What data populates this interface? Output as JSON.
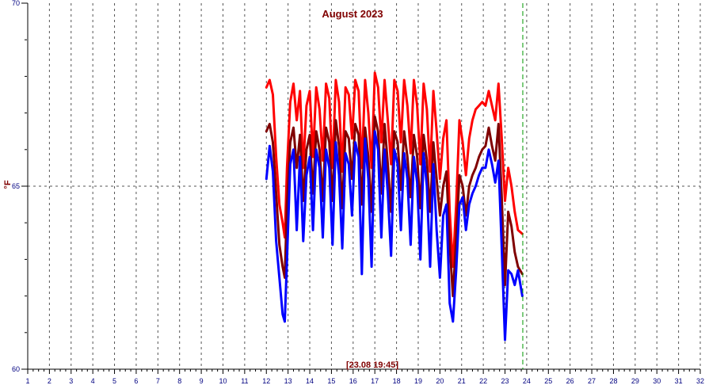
{
  "chart_data": {
    "type": "line",
    "title": "August 2023",
    "ylabel": "°F",
    "current_time_label": "[23.08 19:45]",
    "xlim": [
      1,
      32
    ],
    "ylim": [
      60,
      70
    ],
    "y_ticks": [
      60,
      65,
      70
    ],
    "x_ticks": [
      1,
      2,
      3,
      4,
      5,
      6,
      7,
      8,
      9,
      10,
      11,
      12,
      13,
      14,
      15,
      16,
      17,
      18,
      19,
      20,
      21,
      22,
      23,
      24,
      25,
      26,
      27,
      28,
      29,
      30,
      31,
      32
    ],
    "grid": true,
    "current_time_x": 23.82,
    "series": [
      {
        "color": "#ff0000",
        "x": [
          12.0,
          12.15,
          12.3,
          12.45,
          12.6,
          12.75,
          12.85,
          12.95,
          13.1,
          13.25,
          13.4,
          13.55,
          13.7,
          13.85,
          14.0,
          14.15,
          14.3,
          14.45,
          14.6,
          14.75,
          14.9,
          15.05,
          15.2,
          15.35,
          15.5,
          15.65,
          15.8,
          15.95,
          16.1,
          16.25,
          16.4,
          16.55,
          16.7,
          16.85,
          17.0,
          17.15,
          17.3,
          17.45,
          17.6,
          17.75,
          17.9,
          18.05,
          18.2,
          18.35,
          18.5,
          18.65,
          18.8,
          18.95,
          19.1,
          19.25,
          19.4,
          19.55,
          19.7,
          19.85,
          20.0,
          20.15,
          20.3,
          20.45,
          20.6,
          20.75,
          20.9,
          21.05,
          21.2,
          21.35,
          21.5,
          21.65,
          21.8,
          21.95,
          22.1,
          22.25,
          22.4,
          22.55,
          22.7,
          22.85,
          23.0,
          23.15,
          23.3,
          23.45,
          23.6,
          23.8
        ],
        "values": [
          67.7,
          67.9,
          67.5,
          65.8,
          64.5,
          64.0,
          63.6,
          65.5,
          67.3,
          67.8,
          66.8,
          67.6,
          65.5,
          67.2,
          67.6,
          65.8,
          67.7,
          67.1,
          65.7,
          67.8,
          67.4,
          65.5,
          67.9,
          67.3,
          65.4,
          67.7,
          67.5,
          66.3,
          67.9,
          67.6,
          65.5,
          67.9,
          67.0,
          65.5,
          68.1,
          67.7,
          66.2,
          67.9,
          66.8,
          65.6,
          67.9,
          67.6,
          66.2,
          67.9,
          67.2,
          65.9,
          67.9,
          67.2,
          65.6,
          67.8,
          67.1,
          65.4,
          67.6,
          66.5,
          65.2,
          66.3,
          66.8,
          64.3,
          62.8,
          64.5,
          66.8,
          66.2,
          65.3,
          66.3,
          66.8,
          67.1,
          67.2,
          67.3,
          67.2,
          67.6,
          67.2,
          66.8,
          67.8,
          66.3,
          64.6,
          65.5,
          65.0,
          64.3,
          63.8,
          63.7
        ]
      },
      {
        "color": "#800000",
        "x": [
          12.0,
          12.15,
          12.3,
          12.45,
          12.6,
          12.75,
          12.85,
          12.95,
          13.1,
          13.25,
          13.4,
          13.55,
          13.7,
          13.85,
          14.0,
          14.15,
          14.3,
          14.45,
          14.6,
          14.75,
          14.9,
          15.05,
          15.2,
          15.35,
          15.5,
          15.65,
          15.8,
          15.95,
          16.1,
          16.25,
          16.4,
          16.55,
          16.7,
          16.85,
          17.0,
          17.15,
          17.3,
          17.45,
          17.6,
          17.75,
          17.9,
          18.05,
          18.2,
          18.35,
          18.5,
          18.65,
          18.8,
          18.95,
          19.1,
          19.25,
          19.4,
          19.55,
          19.7,
          19.85,
          20.0,
          20.15,
          20.3,
          20.45,
          20.6,
          20.75,
          20.9,
          21.05,
          21.2,
          21.35,
          21.5,
          21.65,
          21.8,
          21.95,
          22.1,
          22.25,
          22.4,
          22.55,
          22.7,
          22.85,
          23.0,
          23.15,
          23.3,
          23.45,
          23.6,
          23.8
        ],
        "values": [
          66.5,
          66.7,
          66.2,
          64.8,
          63.4,
          62.8,
          62.5,
          64.5,
          66.2,
          66.6,
          65.5,
          66.4,
          64.6,
          66.0,
          66.4,
          64.8,
          66.5,
          66.0,
          64.6,
          66.6,
          66.2,
          64.6,
          66.8,
          66.1,
          64.4,
          66.5,
          66.3,
          65.2,
          66.7,
          66.4,
          64.5,
          66.6,
          65.8,
          64.3,
          66.9,
          66.5,
          64.8,
          66.7,
          65.6,
          64.3,
          66.5,
          66.2,
          64.9,
          66.5,
          65.8,
          64.7,
          66.4,
          65.8,
          64.4,
          66.4,
          65.7,
          64.3,
          66.2,
          65.2,
          64.2,
          65.0,
          65.4,
          63.4,
          62.0,
          63.6,
          65.3,
          65.0,
          64.2,
          65.0,
          65.3,
          65.5,
          65.8,
          66.0,
          66.1,
          66.6,
          66.1,
          65.7,
          66.7,
          64.7,
          62.3,
          64.3,
          63.9,
          63.2,
          62.8,
          62.6
        ]
      },
      {
        "color": "#0000ff",
        "x": [
          12.0,
          12.15,
          12.3,
          12.45,
          12.6,
          12.75,
          12.85,
          12.95,
          13.1,
          13.25,
          13.4,
          13.55,
          13.7,
          13.85,
          14.0,
          14.15,
          14.3,
          14.45,
          14.6,
          14.75,
          14.9,
          15.05,
          15.2,
          15.35,
          15.5,
          15.65,
          15.8,
          15.95,
          16.1,
          16.25,
          16.4,
          16.55,
          16.7,
          16.85,
          17.0,
          17.15,
          17.3,
          17.45,
          17.6,
          17.75,
          17.9,
          18.05,
          18.2,
          18.35,
          18.5,
          18.65,
          18.8,
          18.95,
          19.1,
          19.25,
          19.4,
          19.55,
          19.7,
          19.85,
          20.0,
          20.15,
          20.3,
          20.45,
          20.6,
          20.75,
          20.9,
          21.05,
          21.2,
          21.35,
          21.5,
          21.65,
          21.8,
          21.95,
          22.1,
          22.25,
          22.4,
          22.55,
          22.7,
          22.85,
          23.0,
          23.15,
          23.3,
          23.45,
          23.6,
          23.8
        ],
        "values": [
          65.2,
          66.1,
          65.4,
          63.5,
          62.5,
          61.5,
          61.3,
          63.0,
          65.6,
          66.0,
          63.8,
          65.8,
          63.5,
          65.3,
          65.8,
          63.8,
          66.0,
          65.5,
          63.6,
          66.0,
          65.5,
          63.4,
          66.2,
          65.3,
          63.3,
          65.9,
          65.6,
          64.2,
          66.2,
          65.8,
          62.6,
          66.3,
          65.2,
          62.8,
          66.5,
          66.0,
          63.6,
          66.0,
          64.8,
          63.1,
          66.0,
          65.6,
          63.8,
          65.9,
          65.2,
          63.4,
          65.8,
          65.1,
          63.0,
          65.9,
          65.0,
          62.8,
          65.6,
          63.8,
          62.5,
          64.2,
          64.5,
          61.8,
          61.3,
          62.7,
          64.5,
          64.7,
          63.8,
          64.5,
          64.8,
          65.0,
          65.3,
          65.5,
          65.5,
          66.0,
          65.6,
          65.1,
          65.7,
          63.3,
          60.8,
          62.7,
          62.6,
          62.3,
          62.7,
          62.0
        ]
      }
    ]
  }
}
